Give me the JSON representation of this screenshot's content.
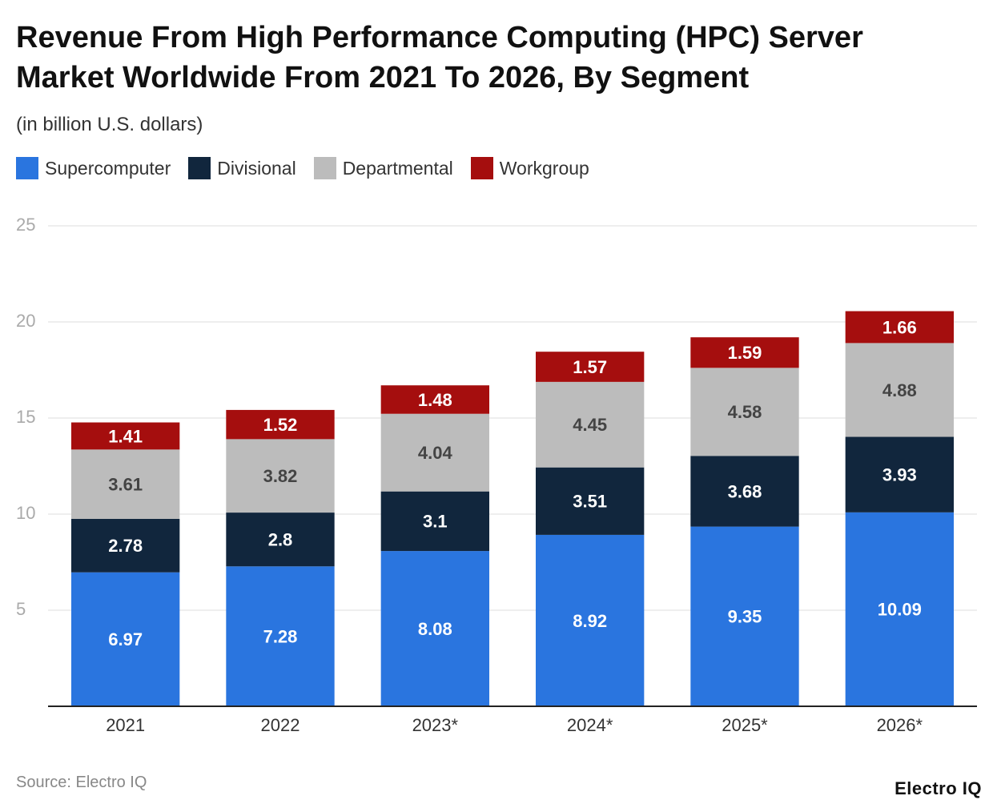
{
  "chart_data": {
    "type": "stacked-bar",
    "title": "Revenue From High Performance Computing (HPC) Server Market Worldwide From 2021 To 2026, By Segment",
    "subtitle": "(in billion U.S. dollars)",
    "categories": [
      "2021",
      "2022",
      "2023*",
      "2024*",
      "2025*",
      "2026*"
    ],
    "series": [
      {
        "name": "Supercomputer",
        "color": "#2a75df",
        "values": [
          6.97,
          7.28,
          8.08,
          8.92,
          9.35,
          10.09
        ]
      },
      {
        "name": "Divisional",
        "color": "#11263d",
        "values": [
          2.78,
          2.8,
          3.1,
          3.51,
          3.68,
          3.93
        ]
      },
      {
        "name": "Departmental",
        "color": "#bcbcbc",
        "values": [
          3.61,
          3.82,
          4.04,
          4.45,
          4.58,
          4.88
        ]
      },
      {
        "name": "Workgroup",
        "color": "#a50e0e",
        "values": [
          1.41,
          1.52,
          1.48,
          1.57,
          1.59,
          1.66
        ]
      }
    ],
    "ylim": [
      0,
      25
    ],
    "yticks": [
      5,
      10,
      15,
      20,
      25
    ],
    "grid": true,
    "source": "Source: Electro IQ",
    "logo": "Electro IQ"
  }
}
